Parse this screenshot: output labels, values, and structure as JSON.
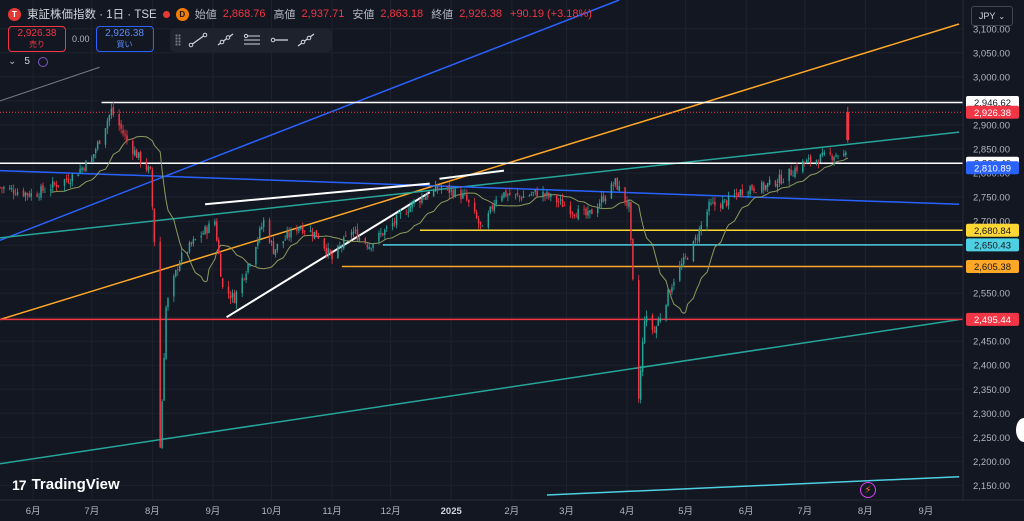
{
  "header": {
    "logo_letter": "T",
    "symbol": "東証株価指数 · 1日 · TSE",
    "badge": "D",
    "open_label": "始値",
    "open": "2,868.76",
    "high_label": "高値",
    "high": "2,937.71",
    "low_label": "安値",
    "low": "2,863.18",
    "close_label": "終値",
    "close": "2,926.38",
    "change": "+90.19 (+3.18%)"
  },
  "trade": {
    "sell_price": "2,926.38",
    "sell_label": "売り",
    "spread": "0.00",
    "buy_price": "2,926.38",
    "buy_label": "買い"
  },
  "indicators": {
    "count": "5"
  },
  "currency": "JPY",
  "watermark": {
    "text": "TradingView",
    "mark": "17"
  },
  "chart_data": {
    "type": "candlestick",
    "y_axis": {
      "ticks": [
        2150,
        2200,
        2250,
        2300,
        2350,
        2400,
        2450,
        2500,
        2550,
        2600,
        2650,
        2700,
        2750,
        2800,
        2850,
        2900,
        2950,
        3000,
        3050,
        3100
      ],
      "tick_labels": [
        "2,150.00",
        "2,200.00",
        "2,250.00",
        "2,300.00",
        "2,350.00",
        "2,400.00",
        "2,450.00",
        "2,500.00",
        "2,550.00",
        "2,600.00",
        "2,650.00",
        "2,700.00",
        "2,750.00",
        "2,800.00",
        "2,850.00",
        "2,900.00",
        "2,950.00",
        "3,000.00",
        "3,050.00",
        "3,100.00"
      ],
      "range": [
        2130,
        3160
      ]
    },
    "x_axis": {
      "labels": [
        "6月",
        "7月",
        "8月",
        "9月",
        "10月",
        "11月",
        "12月",
        "2025",
        "2月",
        "3月",
        "4月",
        "5月",
        "6月",
        "7月",
        "8月",
        "9月"
      ],
      "dates": [
        "2024-06-01",
        "2024-07-01",
        "2024-08-01",
        "2024-09-01",
        "2024-10-01",
        "2024-11-01",
        "2024-12-01",
        "2025-01-01",
        "2025-02-01",
        "2025-03-01",
        "2025-04-01",
        "2025-05-01",
        "2025-06-01",
        "2025-07-01",
        "2025-08-01",
        "2025-09-01"
      ],
      "range": [
        "2024-05-15",
        "2025-09-20"
      ]
    },
    "price_path": [
      [
        "2024-05-15",
        2770
      ],
      [
        "2024-06-01",
        2755
      ],
      [
        "2024-06-20",
        2790
      ],
      [
        "2024-07-01",
        2830
      ],
      [
        "2024-07-11",
        2930
      ],
      [
        "2024-07-20",
        2860
      ],
      [
        "2024-07-31",
        2800
      ],
      [
        "2024-08-02",
        2660
      ],
      [
        "2024-08-05",
        2230
      ],
      [
        "2024-08-08",
        2520
      ],
      [
        "2024-08-15",
        2620
      ],
      [
        "2024-08-23",
        2660
      ],
      [
        "2024-09-02",
        2700
      ],
      [
        "2024-09-06",
        2560
      ],
      [
        "2024-09-12",
        2540
      ],
      [
        "2024-09-20",
        2620
      ],
      [
        "2024-09-27",
        2700
      ],
      [
        "2024-10-02",
        2640
      ],
      [
        "2024-10-15",
        2690
      ],
      [
        "2024-10-25",
        2670
      ],
      [
        "2024-11-01",
        2620
      ],
      [
        "2024-11-11",
        2680
      ],
      [
        "2024-11-20",
        2650
      ],
      [
        "2024-12-01",
        2690
      ],
      [
        "2024-12-13",
        2740
      ],
      [
        "2024-12-27",
        2770
      ],
      [
        "2025-01-08",
        2750
      ],
      [
        "2025-01-17",
        2680
      ],
      [
        "2025-01-25",
        2760
      ],
      [
        "2025-02-05",
        2750
      ],
      [
        "2025-02-15",
        2760
      ],
      [
        "2025-02-25",
        2740
      ],
      [
        "2025-03-05",
        2720
      ],
      [
        "2025-03-12",
        2710
      ],
      [
        "2025-03-26",
        2780
      ],
      [
        "2025-04-02",
        2730
      ],
      [
        "2025-04-07",
        2330
      ],
      [
        "2025-04-10",
        2500
      ],
      [
        "2025-04-15",
        2470
      ],
      [
        "2025-04-25",
        2580
      ],
      [
        "2025-05-05",
        2650
      ],
      [
        "2025-05-13",
        2730
      ],
      [
        "2025-05-22",
        2740
      ],
      [
        "2025-06-01",
        2770
      ],
      [
        "2025-06-10",
        2770
      ],
      [
        "2025-06-20",
        2790
      ],
      [
        "2025-06-30",
        2820
      ],
      [
        "2025-07-08",
        2830
      ],
      [
        "2025-07-18",
        2840
      ],
      [
        "2025-07-22",
        2836
      ],
      [
        "2025-07-23",
        2926
      ]
    ],
    "last_close": 2926.38,
    "price_labels": [
      {
        "value": 2946.62,
        "label": "2,946.62",
        "color": "#ffffff",
        "text_color": "#131722"
      },
      {
        "value": 2926.38,
        "label": "2,926.38",
        "color": "#f23645",
        "text_color": "#ffffff"
      },
      {
        "value": 2820.4,
        "label": "2,820.40",
        "color": "#ffffff",
        "text_color": "#131722"
      },
      {
        "value": 2810.89,
        "label": "2,810.89",
        "color": "#2962ff",
        "text_color": "#ffffff"
      },
      {
        "value": 2680.84,
        "label": "2,680.84",
        "color": "#fdd835",
        "text_color": "#131722"
      },
      {
        "value": 2650.43,
        "label": "2,650.43",
        "color": "#4dd0e1",
        "text_color": "#131722"
      },
      {
        "value": 2605.38,
        "label": "2,605.38",
        "color": "#ffa726",
        "text_color": "#131722"
      },
      {
        "value": 2495.44,
        "label": "2,495.44",
        "color": "#f23645",
        "text_color": "#ffffff"
      }
    ],
    "horizontal_lines": [
      {
        "value": 2946.62,
        "color": "#ffffff",
        "from": "2024-07-06",
        "to": "2025-09-20"
      },
      {
        "value": 2820.4,
        "color": "#ffffff",
        "from": "2024-05-15",
        "to": "2025-09-20"
      },
      {
        "value": 2680.84,
        "color": "#fdd835",
        "from": "2024-12-16",
        "to": "2025-09-20"
      },
      {
        "value": 2650.43,
        "color": "#4dd0e1",
        "from": "2024-11-27",
        "to": "2025-09-20"
      },
      {
        "value": 2605.38,
        "color": "#ffa726",
        "from": "2024-11-06",
        "to": "2025-09-20"
      },
      {
        "value": 2495.44,
        "color": "#f23645",
        "from": "2024-05-15",
        "to": "2025-09-20"
      }
    ],
    "trend_lines": [
      {
        "color": "#2962ff",
        "p1": [
          "2024-05-15",
          2660
        ],
        "p2": [
          "2025-03-28",
          3160
        ]
      },
      {
        "color": "#ffa726",
        "p1": [
          "2024-05-15",
          2495
        ],
        "p2": [
          "2025-09-18",
          3110
        ]
      },
      {
        "color": "#26a69a",
        "p1": [
          "2024-05-15",
          2665
        ],
        "p2": [
          "2025-09-18",
          2885
        ]
      },
      {
        "color": "#26a69a",
        "p1": [
          "2024-05-15",
          2195
        ],
        "p2": [
          "2025-09-18",
          2495
        ]
      },
      {
        "color": "#4dd0e1",
        "p1": [
          "2025-02-19",
          2130
        ],
        "p2": [
          "2025-09-18",
          2168
        ]
      },
      {
        "color": "#2962ff",
        "p1": [
          "2024-05-15",
          2805
        ],
        "p2": [
          "2025-09-18",
          2735
        ]
      },
      {
        "color": "#ffffff",
        "p1": [
          "2024-08-28",
          2735
        ],
        "p2": [
          "2024-12-21",
          2778
        ],
        "width": 2
      },
      {
        "color": "#ffffff",
        "p1": [
          "2024-09-08",
          2500
        ],
        "p2": [
          "2024-12-21",
          2760
        ],
        "width": 2
      },
      {
        "color": "#ffffff",
        "p1": [
          "2024-12-26",
          2788
        ],
        "p2": [
          "2025-01-28",
          2805
        ],
        "width": 2
      },
      {
        "color": "#787b86",
        "p1": [
          "2024-05-15",
          2950
        ],
        "p2": [
          "2024-07-05",
          3020
        ],
        "width": 1
      }
    ]
  }
}
